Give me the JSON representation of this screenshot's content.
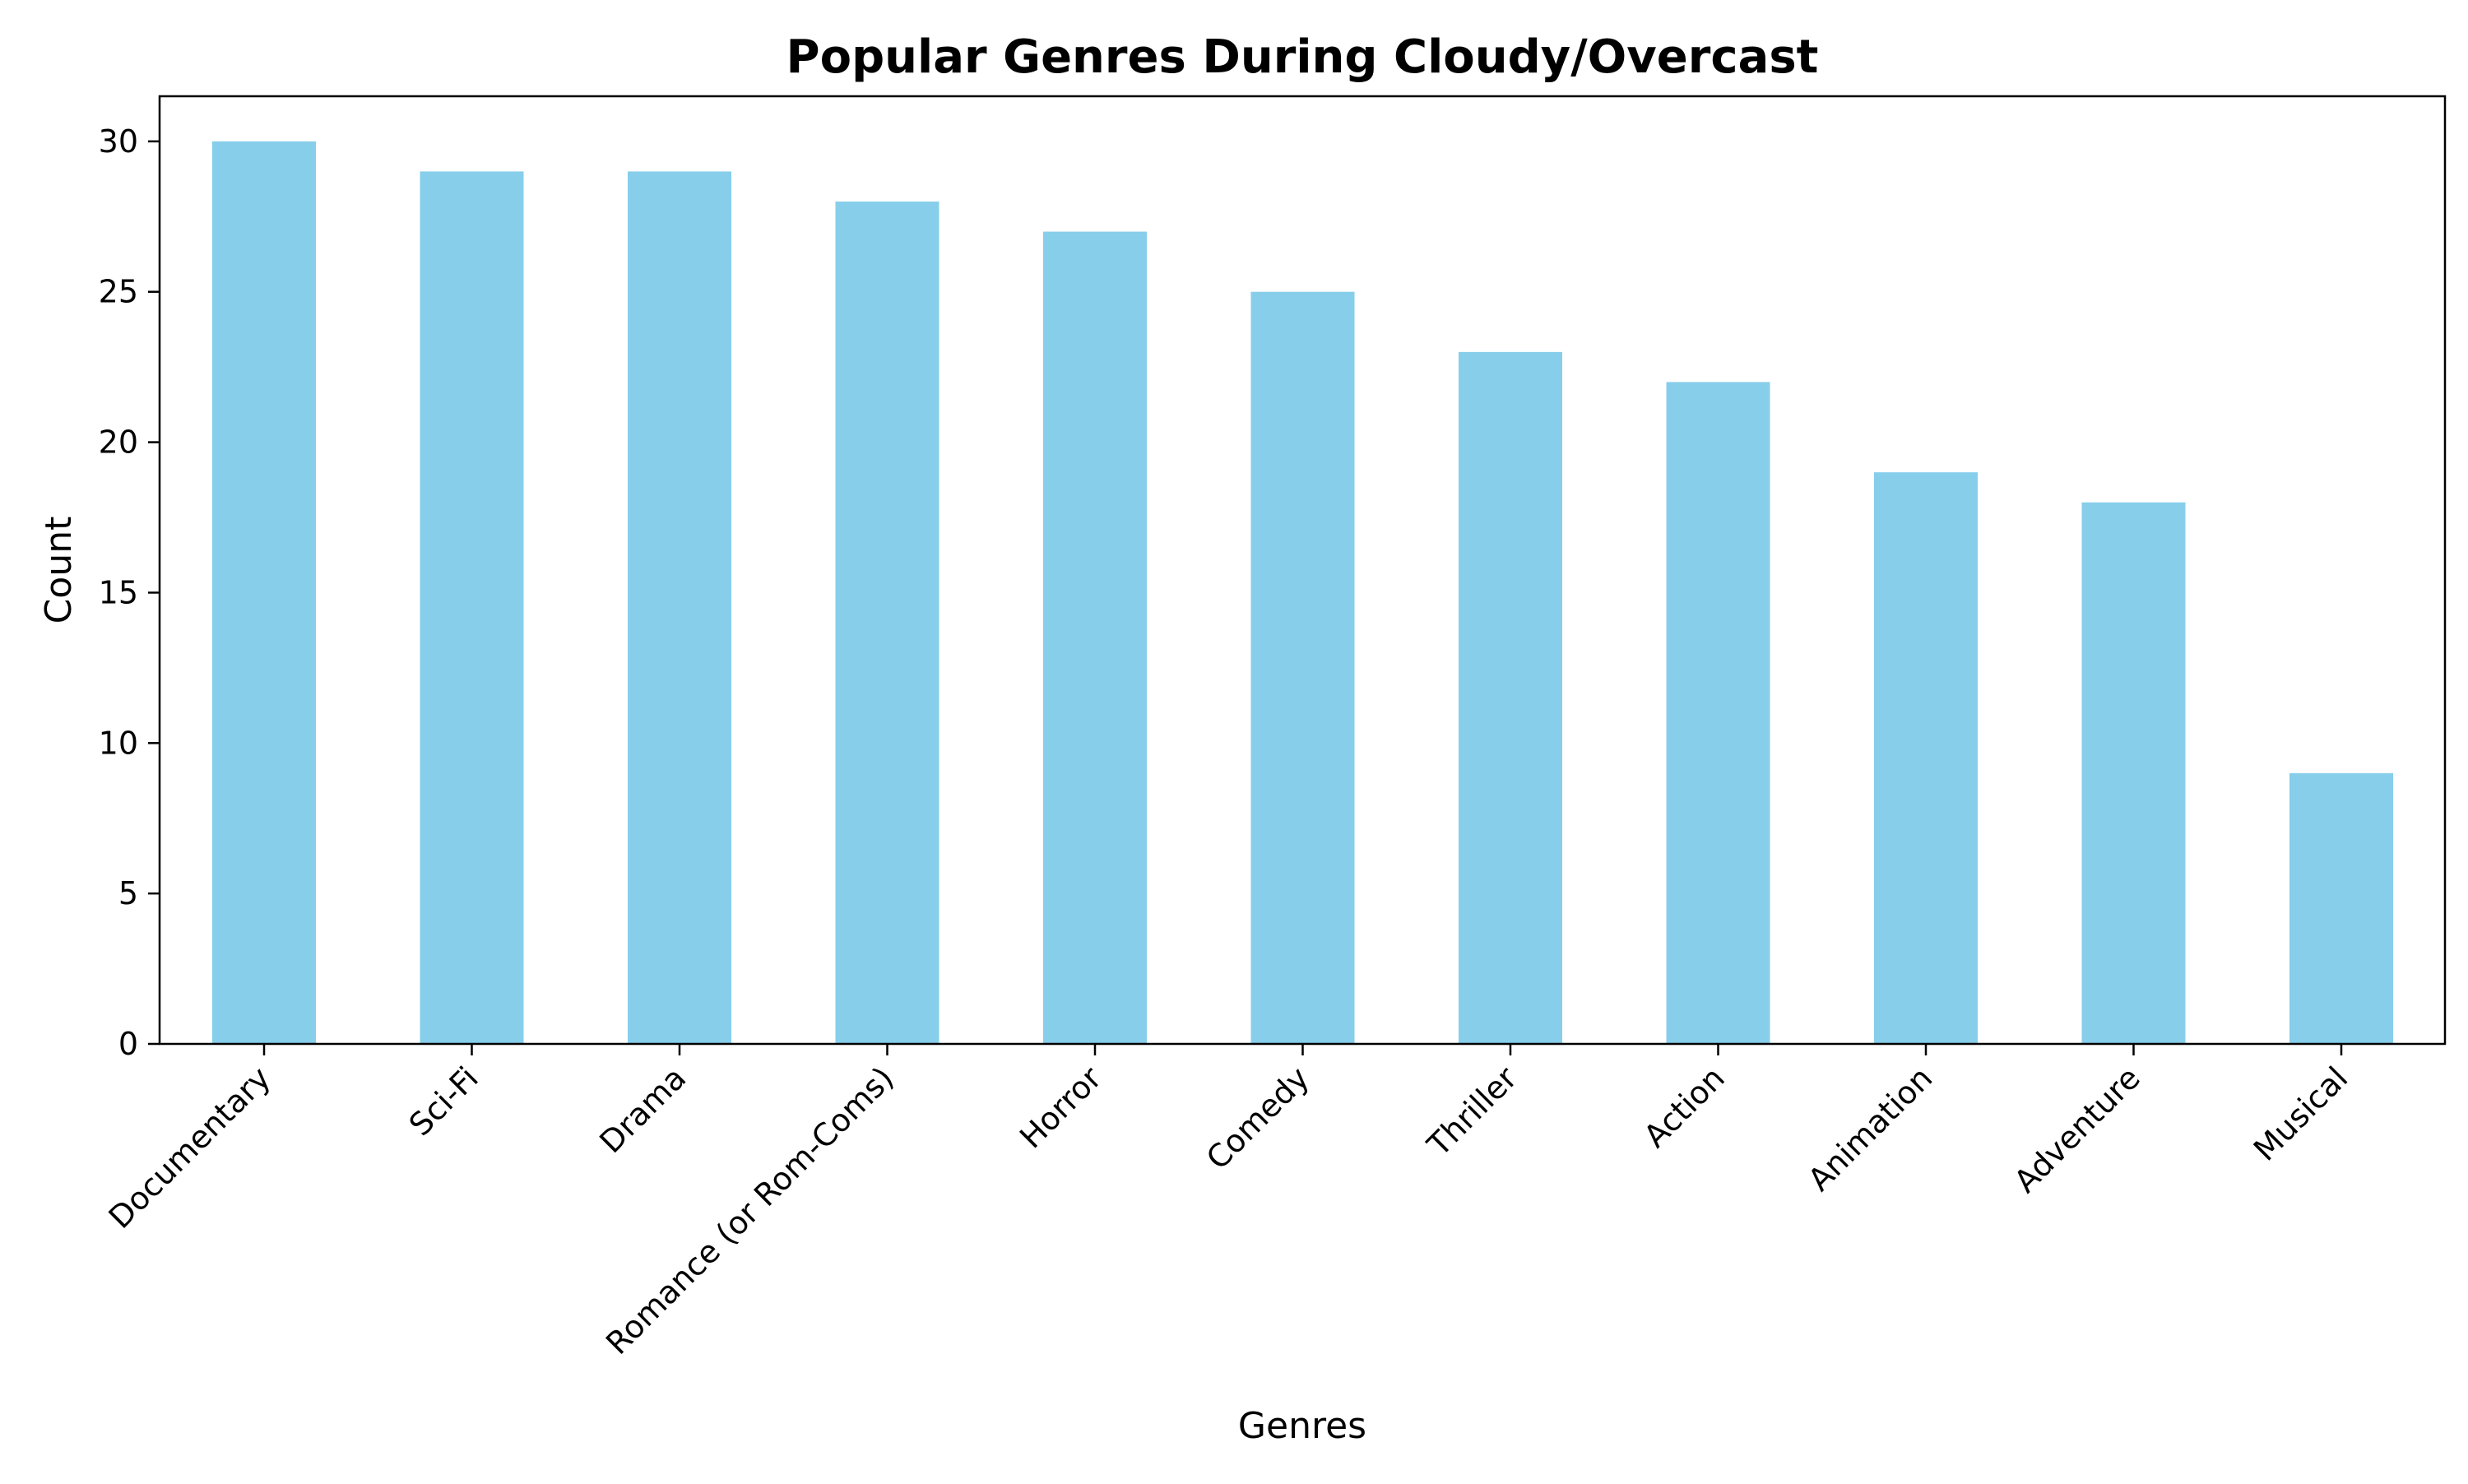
{
  "chart_data": {
    "type": "bar",
    "title": "Popular Genres During Cloudy/Overcast",
    "xlabel": "Genres",
    "ylabel": "Count",
    "categories": [
      "Documentary",
      "Sci-Fi",
      "Drama",
      "Romance (or Rom-Coms)",
      "Horror",
      "Comedy",
      "Thriller",
      "Action",
      "Animation",
      "Adventure",
      "Musical"
    ],
    "values": [
      30,
      29,
      29,
      28,
      27,
      25,
      23,
      22,
      19,
      18,
      9
    ],
    "ylim": [
      0,
      31.5
    ],
    "yticks": [
      0,
      5,
      10,
      15,
      20,
      25,
      30
    ],
    "bar_color": "#87CEEB",
    "grid": false,
    "legend": "none"
  }
}
